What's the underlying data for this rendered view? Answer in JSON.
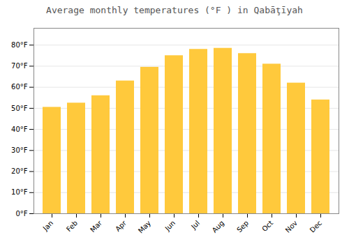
{
  "chart_data": {
    "type": "bar",
    "title": "Average monthly temperatures (°F ) in Qabāţīyah",
    "categories": [
      "Jan",
      "Feb",
      "Mar",
      "Apr",
      "May",
      "Jun",
      "Jul",
      "Aug",
      "Sep",
      "Oct",
      "Nov",
      "Dec"
    ],
    "values": [
      50.5,
      52.5,
      56.0,
      63.0,
      69.5,
      75.0,
      78.0,
      78.5,
      76.0,
      71.0,
      62.0,
      54.0
    ],
    "color": "#FFC93C",
    "ylim": [
      0,
      88
    ],
    "yticks": [
      {
        "value": 0,
        "label": "0°F"
      },
      {
        "value": 10,
        "label": "10°F"
      },
      {
        "value": 20,
        "label": "20°F"
      },
      {
        "value": 30,
        "label": "30°F"
      },
      {
        "value": 40,
        "label": "40°F"
      },
      {
        "value": 50,
        "label": "50°F"
      },
      {
        "value": 60,
        "label": "60°F"
      },
      {
        "value": 70,
        "label": "70°F"
      },
      {
        "value": 80,
        "label": "80°F"
      }
    ],
    "grid": true
  }
}
